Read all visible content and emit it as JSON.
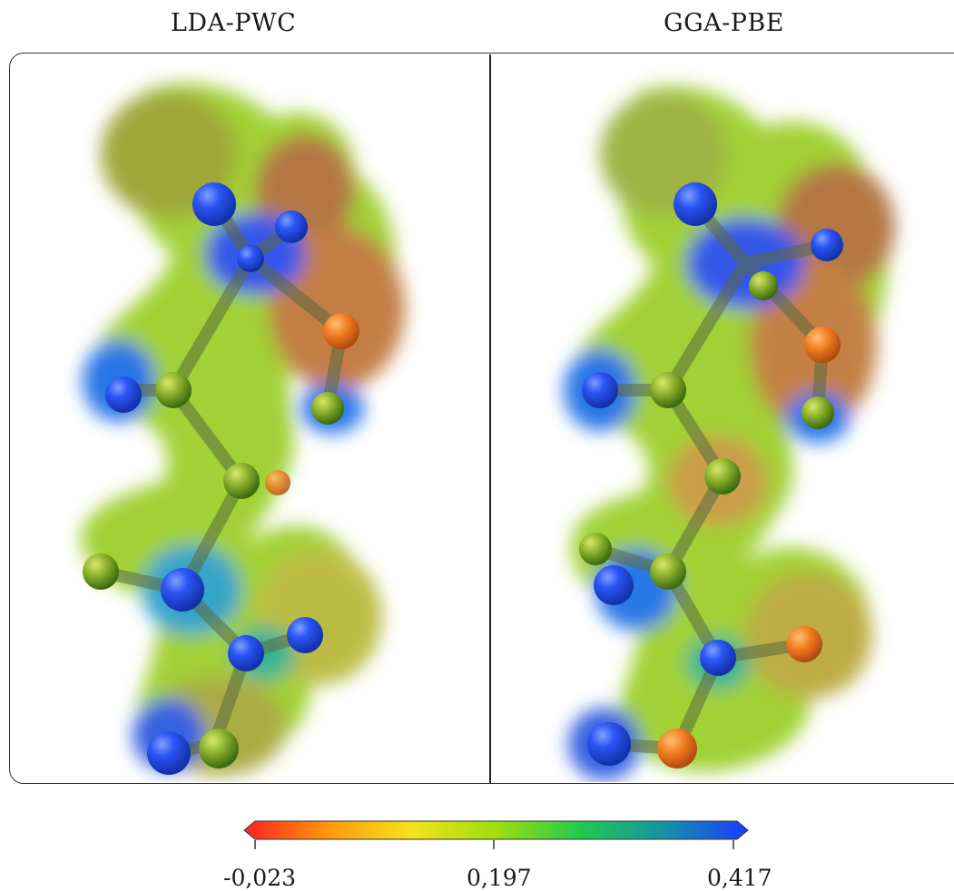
{
  "panels": {
    "left": {
      "title": "LDA-PWC"
    },
    "right": {
      "title": "GGA-PBE"
    }
  },
  "colorbar": {
    "min": -0.023,
    "mid": 0.197,
    "max": 0.417,
    "tick_labels": [
      "-0,023",
      "0,197",
      "0,417"
    ],
    "colors": [
      "#ff2020",
      "#ff9a10",
      "#f4e21a",
      "#9ede10",
      "#22c850",
      "#168fa8",
      "#1a3cff"
    ]
  }
}
